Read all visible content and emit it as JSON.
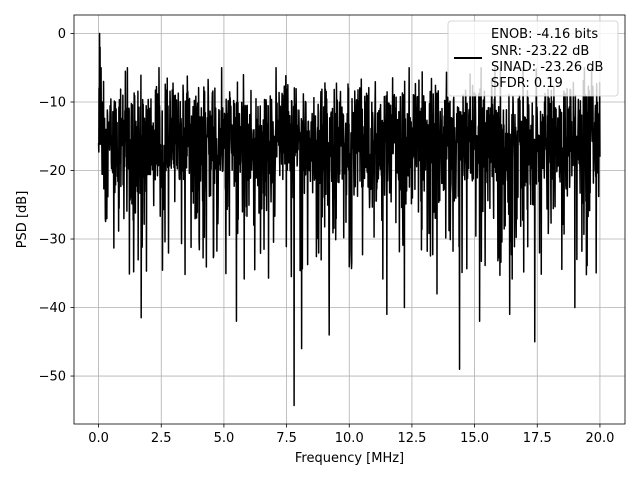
{
  "chart_data": {
    "type": "line",
    "title": "",
    "xlabel": "Frequency [MHz]",
    "ylabel": "PSD [dB]",
    "xlim": [
      -0.98,
      21.0
    ],
    "ylim": [
      -57.0,
      2.7
    ],
    "xticks": [
      0.0,
      2.5,
      5.0,
      7.5,
      10.0,
      12.5,
      15.0,
      17.5,
      20.0
    ],
    "xtick_labels": [
      "0.0",
      "2.5",
      "5.0",
      "7.5",
      "10.0",
      "12.5",
      "15.0",
      "17.5",
      "20.0"
    ],
    "yticks": [
      0,
      -10,
      -20,
      -30,
      -40,
      -50
    ],
    "ytick_labels": [
      "0",
      "−10",
      "−20",
      "−30",
      "−40",
      "−50"
    ],
    "grid": true,
    "legend_position": "top-right",
    "series": [
      {
        "color": "#000000",
        "description_points": {
          "x": [
            0.0,
            0.02,
            0.04,
            0.06,
            0.08,
            0.1,
            0.15,
            0.2,
            0.3,
            0.5,
            0.7,
            1.0,
            1.7,
            2.0,
            3.0,
            4.0,
            5.5,
            7.0,
            7.8,
            7.9,
            8.1,
            9.2,
            11.5,
            12.2,
            13.5,
            14.4,
            15.2,
            16.4,
            17.4,
            18.2,
            19.0,
            19.8,
            20.0
          ],
          "y": [
            -16.0,
            -8.0,
            0.0,
            -2.0,
            -12.0,
            -5.0,
            -10.0,
            -7.0,
            -14.0,
            -12.0,
            -11.0,
            -15.0,
            -41.5,
            -16.0,
            -14.0,
            -13.0,
            -42.0,
            -15.0,
            -54.3,
            -14.0,
            -46.0,
            -44.0,
            -41.0,
            -40.0,
            -38.0,
            -49.0,
            -42.0,
            -41.0,
            -45.0,
            -15.0,
            -40.0,
            -15.0,
            -18.0
          ]
        }
      }
    ],
    "legend_lines": [
      "ENOB: -4.16 bits",
      "SNR: -23.22 dB",
      "SINAD: -23.26 dB",
      "SFDR: 0.19"
    ]
  }
}
